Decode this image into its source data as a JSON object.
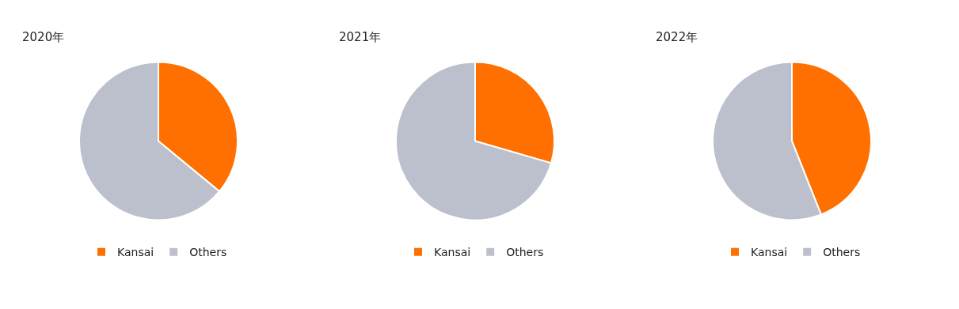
{
  "chart_data": [
    {
      "type": "pie",
      "title": "2020年",
      "categories": [
        "Kansai",
        "Others"
      ],
      "values": [
        36,
        64
      ],
      "colors": [
        "#ff7000",
        "#bbc0cc"
      ],
      "legend": "bottom"
    },
    {
      "type": "pie",
      "title": "2021年",
      "categories": [
        "Kansai",
        "Others"
      ],
      "values": [
        29.5,
        70.5
      ],
      "colors": [
        "#ff7000",
        "#bbc0cc"
      ],
      "legend": "bottom"
    },
    {
      "type": "pie",
      "title": "2022年",
      "categories": [
        "Kansai",
        "Others"
      ],
      "values": [
        44,
        56
      ],
      "colors": [
        "#ff7000",
        "#bbc0cc"
      ],
      "legend": "bottom"
    }
  ]
}
